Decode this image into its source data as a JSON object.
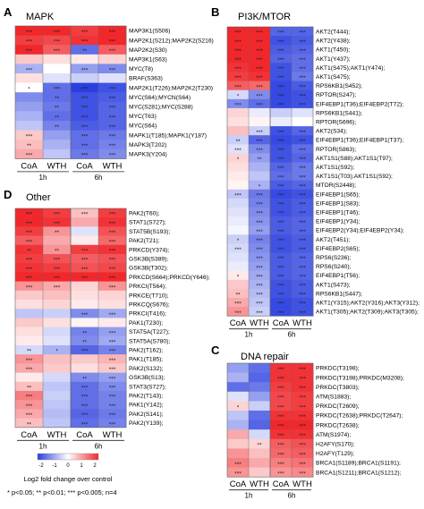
{
  "footnote": "* p<0.05; ** p<0.01; *** p<0.005; n=4",
  "colorbar": {
    "ticks": [
      "-2",
      "-1",
      "0",
      "1",
      "2"
    ],
    "label_line1": "Log2 fold change over control",
    "label_line2": ""
  },
  "colors": {
    "low": "#2b3fe0",
    "mid": "#ffffff",
    "high": "#f0282c"
  },
  "chart_data": [
    {
      "type": "heatmap",
      "panel_letter": "A",
      "title": "MAPK",
      "columns": [
        "CoA",
        "WTH",
        "CoA",
        "WTH"
      ],
      "time_labels": [
        "1h",
        "6h"
      ],
      "color_range": [
        -2,
        2
      ],
      "rows": [
        "MAP3K1(S506)",
        "MAP2K1(S212);MAP2K2(S216)",
        "MAP2K2(S30)",
        "MAP3K1(S63)",
        "MYC(T8)",
        "BRAF(S363)",
        "MAP2K1(T226);MAP2K2(T230)",
        "MYC(S64);MYCN(S64)",
        "MYC(S281);MYC(S288)",
        "MYC(T63)",
        "MYC(S64)",
        "MAPK1(T185);MAPK1(Y187)",
        "MAPK3(T202)",
        "MAPK3(Y204)"
      ],
      "values": [
        [
          2.0,
          2.0,
          1.8,
          2.0
        ],
        [
          1.8,
          1.7,
          1.9,
          2.0
        ],
        [
          2.0,
          1.5,
          -1.5,
          1.5
        ],
        [
          0.5,
          0.3,
          0.2,
          0.4
        ],
        [
          -0.8,
          0.0,
          -1.0,
          -1.2
        ],
        [
          0.3,
          -0.3,
          -0.5,
          -0.3
        ],
        [
          0.0,
          -1.5,
          -2.0,
          -1.8
        ],
        [
          -1.2,
          -1.5,
          -1.8,
          -1.7
        ],
        [
          -1.0,
          -1.4,
          -1.8,
          -1.6
        ],
        [
          -0.8,
          -1.5,
          -1.8,
          -1.6
        ],
        [
          -0.6,
          -1.3,
          -1.7,
          -1.6
        ],
        [
          0.5,
          -1.0,
          -1.5,
          -1.4
        ],
        [
          0.6,
          -0.8,
          -1.5,
          -1.3
        ],
        [
          0.8,
          -0.6,
          -1.4,
          -1.2
        ]
      ],
      "significance": [
        [
          "***",
          "***",
          "***",
          "***"
        ],
        [
          "***",
          "***",
          "***",
          "***"
        ],
        [
          "***",
          "***",
          "**",
          "***"
        ],
        [
          "",
          "",
          "",
          ""
        ],
        [
          "***",
          "",
          "***",
          "***"
        ],
        [
          "",
          "",
          "",
          ""
        ],
        [
          "*",
          "***",
          "***",
          "***"
        ],
        [
          "",
          "**",
          "***",
          "***"
        ],
        [
          "",
          "**",
          "***",
          "***"
        ],
        [
          "",
          "**",
          "***",
          "***"
        ],
        [
          "",
          "**",
          "***",
          "***"
        ],
        [
          "***",
          "",
          "***",
          "***"
        ],
        [
          "**",
          "",
          "***",
          "***"
        ],
        [
          "***",
          "",
          "***",
          "***"
        ]
      ]
    },
    {
      "type": "heatmap",
      "panel_letter": "B",
      "title": "PI3K/MTOR",
      "columns": [
        "CoA",
        "WTH",
        "CoA",
        "WTH"
      ],
      "time_labels": [
        "1h",
        "6h"
      ],
      "color_range": [
        -2,
        2
      ],
      "rows": [
        "AKT2(T444);",
        "AKT2(Y438);",
        "AKT1(T450);",
        "AKT1(Y437);",
        "AKT1(S475);AKT1(Y474);",
        "AKT1(S475);",
        "RPS6KB1(S452);",
        "RPTOR(S247);",
        "EIF4EBP1(T36);EIF4EBP2(T72);",
        "RPS6KB1(S441);",
        "RPTOR(S696);",
        "AKT2(S34);",
        "EIF4EBP1(T36);EIF4EBP1(T37);",
        "RPTOR(S863);",
        "AKT1S1(S88);AKT1S1(T97);",
        "AKT1S1(S92);",
        "AKT1S1(T03);AKT1S1(S92);",
        "MTOR(S2448);",
        "EIF4EBP1(S65);",
        "EIF4EBP1(S83);",
        "EIF4EBP1(T46);",
        "EIF4EBP1(Y34);",
        "EIF4EBP2(Y34);EIF4EBP2(Y34);",
        "AKT2(T451);",
        "EIF4EBP2(S65);",
        "RPS6(S236);",
        "RPS6(S240);",
        "EIF4EBP1(T56);",
        "AKT1(S473);",
        "RPS6KB1(S447);",
        "AKT1(Y315);AKT2(Y316);AKT3(Y312);",
        "AKT1(T305);AKT2(T309);AKT3(T305);"
      ],
      "values": [
        [
          2.0,
          2.0,
          -1.6,
          -1.6
        ],
        [
          2.0,
          2.0,
          -1.8,
          -1.7
        ],
        [
          2.0,
          2.0,
          -1.7,
          -1.6
        ],
        [
          2.0,
          2.0,
          -1.6,
          -1.5
        ],
        [
          1.9,
          2.0,
          -1.8,
          -1.5
        ],
        [
          1.8,
          1.9,
          -1.8,
          -1.4
        ],
        [
          1.5,
          1.4,
          -1.9,
          -1.7
        ],
        [
          -0.4,
          -1.2,
          -1.9,
          -1.8
        ],
        [
          -1.2,
          -1.5,
          -1.9,
          -1.8
        ],
        [
          0.4,
          -0.2,
          -0.5,
          -0.3
        ],
        [
          0.3,
          0.1,
          -0.2,
          0.0
        ],
        [
          0.6,
          -0.5,
          -1.8,
          -1.6
        ],
        [
          -0.5,
          -1.6,
          -1.9,
          -1.8
        ],
        [
          -0.3,
          -1.2,
          -1.8,
          -1.5
        ],
        [
          0.4,
          -1.0,
          -1.8,
          -1.6
        ],
        [
          0.3,
          -0.8,
          -1.6,
          -1.4
        ],
        [
          0.2,
          -0.6,
          -1.5,
          -1.4
        ],
        [
          0.1,
          -0.8,
          -1.7,
          -1.6
        ],
        [
          -0.6,
          -1.4,
          -1.9,
          -1.8
        ],
        [
          -0.4,
          -1.3,
          -1.8,
          -1.7
        ],
        [
          -0.3,
          -1.2,
          -1.8,
          -1.7
        ],
        [
          -0.2,
          -1.1,
          -1.7,
          -1.6
        ],
        [
          -0.1,
          -1.0,
          -1.7,
          -1.6
        ],
        [
          -0.5,
          -1.3,
          -1.8,
          -1.7
        ],
        [
          -0.4,
          -1.2,
          -1.8,
          -1.7
        ],
        [
          -0.3,
          -1.1,
          -1.7,
          -1.6
        ],
        [
          -0.2,
          -1.0,
          -1.7,
          -1.6
        ],
        [
          0.2,
          -0.9,
          -1.7,
          -1.6
        ],
        [
          0.5,
          -0.8,
          -1.8,
          -1.7
        ],
        [
          0.6,
          -0.7,
          -1.8,
          -1.7
        ],
        [
          0.8,
          -0.6,
          -1.9,
          -1.8
        ],
        [
          1.0,
          -0.5,
          -1.9,
          -1.8
        ]
      ],
      "significance": [
        [
          "***",
          "***",
          "***",
          "***"
        ],
        [
          "***",
          "***",
          "***",
          "***"
        ],
        [
          "***",
          "***",
          "***",
          "***"
        ],
        [
          "***",
          "***",
          "***",
          "***"
        ],
        [
          "***",
          "***",
          "***",
          "***"
        ],
        [
          "***",
          "***",
          "***",
          "***"
        ],
        [
          "***",
          "***",
          "***",
          "***"
        ],
        [
          "*",
          "***",
          "***",
          "***"
        ],
        [
          "***",
          "***",
          "***",
          "***"
        ],
        [
          "",
          "",
          "",
          ""
        ],
        [
          "",
          "",
          "",
          ""
        ],
        [
          "",
          "***",
          "***",
          "***"
        ],
        [
          "**",
          "***",
          "***",
          "***"
        ],
        [
          "***",
          "***",
          "***",
          "***"
        ],
        [
          "*",
          "**",
          "***",
          "***"
        ],
        [
          "",
          "",
          "***",
          "***"
        ],
        [
          "",
          "",
          "***",
          "***"
        ],
        [
          "",
          "*",
          "***",
          "***"
        ],
        [
          "***",
          "***",
          "***",
          "***"
        ],
        [
          "",
          "***",
          "***",
          "***"
        ],
        [
          "",
          "***",
          "***",
          "***"
        ],
        [
          "",
          "***",
          "***",
          "***"
        ],
        [
          "",
          "***",
          "***",
          "***"
        ],
        [
          "*",
          "***",
          "***",
          "***"
        ],
        [
          "***",
          "***",
          "***",
          "***"
        ],
        [
          "",
          "***",
          "***",
          "***"
        ],
        [
          "",
          "***",
          "***",
          "***"
        ],
        [
          "*",
          "***",
          "***",
          "***"
        ],
        [
          "",
          "***",
          "***",
          "***"
        ],
        [
          "**",
          "***",
          "***",
          "***"
        ],
        [
          "***",
          "***",
          "***",
          "***"
        ],
        [
          "***",
          "***",
          "***",
          "***"
        ]
      ]
    },
    {
      "type": "heatmap",
      "panel_letter": "D",
      "title": "Other",
      "columns": [
        "CoA",
        "WTH",
        "CoA",
        "WTH"
      ],
      "time_labels": [
        "1h",
        "6h"
      ],
      "color_range": [
        -2,
        2
      ],
      "rows": [
        "PAK2(T60);",
        "STAT1(S727);",
        "STAT5B(S193);",
        "PAK2(T21);",
        "PRKCD(Y374);",
        "GSK3B(S389);",
        "GSK3B(T302);",
        "PRKCD(S664);PRKCD(Y646);",
        "PRKCI(T564);",
        "PRKCE(T710);",
        "PRKCQ(S676);",
        "PRKCI(T416);",
        "PAK1(T230);",
        "STAT5A(T227);",
        "STAT5A(S780);",
        "PAK2(T162);",
        "PAK1(T185);",
        "PAK2(S132);",
        "GSK3B(S13);",
        "STAT3(S727);",
        "PAK2(T143);",
        "PAK1(Y142);",
        "PAK2(S141);",
        "PAK2(Y139);"
      ],
      "values": [
        [
          2.0,
          1.8,
          0.6,
          1.8
        ],
        [
          2.0,
          1.9,
          0.8,
          1.9
        ],
        [
          1.8,
          1.0,
          -0.3,
          1.6
        ],
        [
          1.5,
          0.8,
          0.2,
          1.4
        ],
        [
          1.9,
          1.0,
          1.8,
          1.9
        ],
        [
          1.8,
          1.6,
          1.5,
          1.6
        ],
        [
          1.9,
          1.8,
          1.6,
          1.7
        ],
        [
          2.0,
          2.0,
          2.0,
          2.0
        ],
        [
          1.0,
          0.8,
          0.4,
          1.0
        ],
        [
          0.5,
          0.6,
          0.3,
          0.4
        ],
        [
          0.3,
          0.4,
          0.2,
          0.3
        ],
        [
          -0.6,
          -0.5,
          -1.2,
          -0.9
        ],
        [
          0.5,
          0.3,
          0.1,
          0.2
        ],
        [
          0.3,
          -0.4,
          -1.3,
          -1.0
        ],
        [
          0.2,
          -0.3,
          -1.2,
          -0.9
        ],
        [
          -0.4,
          -0.8,
          -1.6,
          -1.3
        ],
        [
          1.0,
          0.6,
          0.5,
          0.7
        ],
        [
          0.8,
          0.5,
          0.3,
          0.5
        ],
        [
          0.2,
          -0.4,
          -1.2,
          -1.0
        ],
        [
          0.6,
          -0.6,
          -1.5,
          -1.2
        ],
        [
          1.2,
          -0.5,
          -1.5,
          -1.3
        ],
        [
          1.0,
          -0.6,
          -1.5,
          -1.3
        ],
        [
          0.8,
          -0.7,
          -1.6,
          -1.4
        ],
        [
          0.6,
          -0.6,
          -1.5,
          -1.3
        ]
      ],
      "significance": [
        [
          "***",
          "***",
          "***",
          "***"
        ],
        [
          "***",
          "***",
          "",
          "***"
        ],
        [
          "***",
          "**",
          "",
          "***"
        ],
        [
          "***",
          "",
          "",
          "***"
        ],
        [
          "**",
          "**",
          "***",
          "***"
        ],
        [
          "***",
          "***",
          "***",
          "***"
        ],
        [
          "***",
          "***",
          "***",
          "***"
        ],
        [
          "***",
          "***",
          "***",
          "***"
        ],
        [
          "***",
          "***",
          "",
          "***"
        ],
        [
          "",
          "",
          "",
          ""
        ],
        [
          "",
          "",
          "",
          ""
        ],
        [
          "",
          "",
          "***",
          "***"
        ],
        [
          "",
          "",
          "",
          ""
        ],
        [
          "",
          "",
          "**",
          "***"
        ],
        [
          "",
          "",
          "**",
          "***"
        ],
        [
          "**",
          "*",
          "***",
          "***"
        ],
        [
          "***",
          "",
          "",
          "***"
        ],
        [
          "***",
          "",
          "",
          "***"
        ],
        [
          "",
          "",
          "**",
          "***"
        ],
        [
          "**",
          "",
          "***",
          "***"
        ],
        [
          "***",
          "",
          "***",
          "***"
        ],
        [
          "***",
          "",
          "***",
          "***"
        ],
        [
          "***",
          "",
          "***",
          "***"
        ],
        [
          "**",
          "",
          "***",
          "***"
        ]
      ]
    },
    {
      "type": "heatmap",
      "panel_letter": "C",
      "title": "DNA repair",
      "columns": [
        "CoA",
        "WTH",
        "CoA",
        "WTH"
      ],
      "time_labels": [
        "1h",
        "6h"
      ],
      "color_range": [
        -2,
        2
      ],
      "rows": [
        "PRKDC(T3198);",
        "PRKDC(T3198);PRKDC(M3208);",
        "PRKDC(T3803);",
        "ATM(S1883);",
        "PRKDC(T2609);",
        "PRKDC(T2638);PRKDC(T2647);",
        "PRKDC(T2638);",
        "ATM(S1974);",
        "H2AFY(S170);",
        "H2AFY(T129);",
        "BRCA1(S1189);BRCA1(S1191);",
        "BRCA1(S1211);BRCA1(S1212);"
      ],
      "values": [
        [
          -1.0,
          -1.5,
          1.9,
          1.9
        ],
        [
          -0.8,
          -1.6,
          1.9,
          1.9
        ],
        [
          -1.5,
          -1.4,
          1.8,
          1.9
        ],
        [
          -0.3,
          -1.0,
          1.7,
          1.8
        ],
        [
          0.4,
          -0.5,
          1.7,
          1.8
        ],
        [
          -0.6,
          -1.5,
          1.9,
          1.9
        ],
        [
          -0.8,
          -1.6,
          2.0,
          2.0
        ],
        [
          0.8,
          -0.4,
          1.9,
          1.9
        ],
        [
          0.5,
          0.4,
          1.5,
          1.6
        ],
        [
          1.0,
          0.6,
          1.4,
          1.5
        ],
        [
          1.2,
          0.8,
          1.2,
          1.3
        ],
        [
          1.0,
          0.5,
          1.0,
          1.1
        ]
      ],
      "significance": [
        [
          "",
          "",
          "***",
          "***"
        ],
        [
          "",
          "",
          "***",
          "***"
        ],
        [
          "",
          "",
          "***",
          "***"
        ],
        [
          "",
          "",
          "***",
          "***"
        ],
        [
          "*",
          "",
          "***",
          "***"
        ],
        [
          "",
          "",
          "***",
          "***"
        ],
        [
          "",
          "",
          "***",
          "***"
        ],
        [
          "",
          "",
          "***",
          "***"
        ],
        [
          "",
          "**",
          "***",
          "***"
        ],
        [
          "",
          "",
          "***",
          "***"
        ],
        [
          "***",
          "",
          "***",
          "***"
        ],
        [
          "***",
          "",
          "***",
          "***"
        ]
      ]
    }
  ]
}
